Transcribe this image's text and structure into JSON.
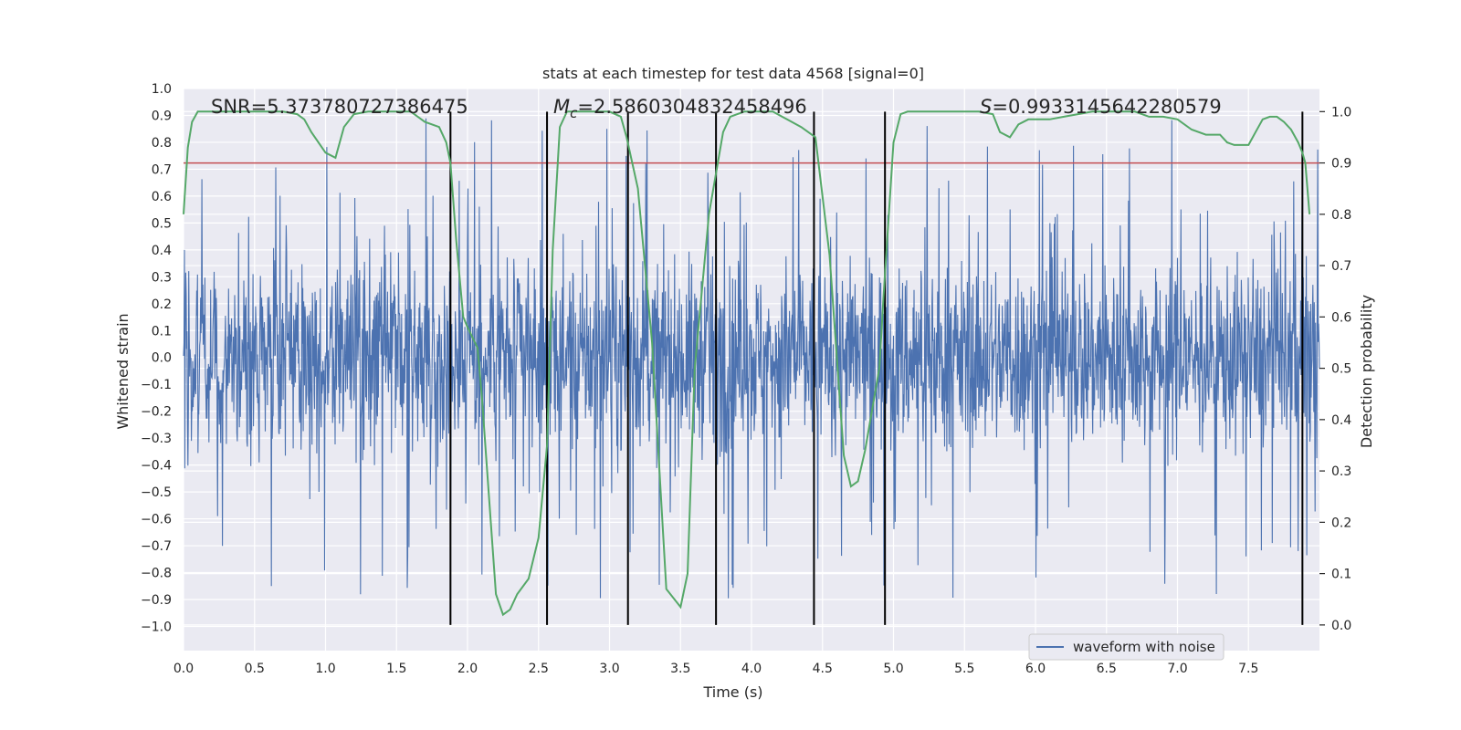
{
  "chart_data": {
    "type": "line",
    "title": "stats at each timestep for test data 4568 [signal=0]",
    "xlabel": "Time (s)",
    "ylabel_left": "Whitened strain",
    "ylabel_right": "Detection probability",
    "xlim": [
      0.0,
      8.0
    ],
    "ylim_left": [
      -1.09,
      1.0
    ],
    "ylim_right": [
      -0.05,
      1.045
    ],
    "x_ticks": [
      "0.0",
      "0.5",
      "1.0",
      "1.5",
      "2.0",
      "2.5",
      "3.0",
      "3.5",
      "4.0",
      "4.5",
      "5.0",
      "5.5",
      "6.0",
      "6.5",
      "7.0",
      "7.5"
    ],
    "y_ticks_left": [
      "1.0",
      "0.9",
      "0.8",
      "0.7",
      "0.6",
      "0.5",
      "0.4",
      "0.3",
      "0.2",
      "0.1",
      "0.0",
      "−0.1",
      "−0.2",
      "−0.3",
      "−0.4",
      "−0.5",
      "−0.6",
      "−0.7",
      "−0.8",
      "−0.9",
      "−1.0"
    ],
    "y_ticks_right": [
      "1.0",
      "0.9",
      "0.8",
      "0.7",
      "0.6",
      "0.5",
      "0.4",
      "0.3",
      "0.2",
      "0.1",
      "0.0"
    ],
    "annotations": {
      "snr": "SNR=5.373780727386475",
      "mc_symbol": "M",
      "mc_sub": "c",
      "mc_value": "=2.5860304832458496",
      "s_symbol": "S",
      "s_value": "=0.9933145642280579"
    },
    "series": [
      {
        "name": "waveform with noise",
        "axis": "left",
        "color": "#4c72b0",
        "description": "whitened strain noise, roughly symmetric about 0 with envelope about ±0.35 and spikes up to ±1.0"
      },
      {
        "name": "detection probability",
        "axis": "right",
        "color": "#55a868",
        "x": [
          0.0,
          0.03,
          0.06,
          0.1,
          0.15,
          0.2,
          0.3,
          0.4,
          0.5,
          0.6,
          0.7,
          0.8,
          0.85,
          0.9,
          1.0,
          1.07,
          1.13,
          1.2,
          1.3,
          1.4,
          1.5,
          1.6,
          1.7,
          1.8,
          1.85,
          1.88,
          1.92,
          1.97,
          2.0,
          2.07,
          2.1,
          2.2,
          2.25,
          2.3,
          2.35,
          2.43,
          2.5,
          2.56,
          2.6,
          2.65,
          2.7,
          2.8,
          2.9,
          3.0,
          3.08,
          3.12,
          3.2,
          3.3,
          3.4,
          3.5,
          3.55,
          3.6,
          3.7,
          3.8,
          3.85,
          3.95,
          4.05,
          4.15,
          4.25,
          4.35,
          4.45,
          4.55,
          4.65,
          4.7,
          4.75,
          4.8,
          4.9,
          4.93,
          5.0,
          5.05,
          5.1,
          5.2,
          5.3,
          5.4,
          5.5,
          5.6,
          5.7,
          5.75,
          5.82,
          5.88,
          5.95,
          6.0,
          6.1,
          6.2,
          6.3,
          6.4,
          6.5,
          6.6,
          6.7,
          6.8,
          6.9,
          7.0,
          7.1,
          7.2,
          7.3,
          7.35,
          7.4,
          7.5,
          7.55,
          7.6,
          7.65,
          7.7,
          7.75,
          7.8,
          7.85,
          7.88,
          7.9,
          7.93
        ],
        "values": [
          0.8,
          0.93,
          0.98,
          1.0,
          1.0,
          1.0,
          1.0,
          1.0,
          1.0,
          1.0,
          1.0,
          0.995,
          0.985,
          0.96,
          0.92,
          0.91,
          0.97,
          0.995,
          1.0,
          1.0,
          1.0,
          1.0,
          0.98,
          0.97,
          0.94,
          0.9,
          0.75,
          0.6,
          0.58,
          0.54,
          0.45,
          0.06,
          0.02,
          0.03,
          0.06,
          0.09,
          0.17,
          0.35,
          0.73,
          0.97,
          1.0,
          1.0,
          1.0,
          1.0,
          0.99,
          0.95,
          0.85,
          0.55,
          0.07,
          0.035,
          0.1,
          0.5,
          0.8,
          0.96,
          0.99,
          1.0,
          1.0,
          1.0,
          0.985,
          0.97,
          0.95,
          0.72,
          0.33,
          0.27,
          0.28,
          0.34,
          0.5,
          0.64,
          0.94,
          0.995,
          1.0,
          1.0,
          1.0,
          1.0,
          1.0,
          1.0,
          0.995,
          0.96,
          0.95,
          0.975,
          0.985,
          0.985,
          0.985,
          0.99,
          0.995,
          1.0,
          1.0,
          1.0,
          1.0,
          0.99,
          0.99,
          0.985,
          0.965,
          0.955,
          0.955,
          0.94,
          0.935,
          0.935,
          0.96,
          0.985,
          0.99,
          0.99,
          0.98,
          0.965,
          0.94,
          0.92,
          0.9,
          0.8
        ]
      },
      {
        "name": "threshold",
        "axis": "right",
        "color": "#c44e52",
        "values": [
          0.9
        ]
      }
    ],
    "vertical_lines": [
      1.88,
      2.56,
      3.13,
      3.75,
      4.44,
      4.94,
      7.88
    ],
    "legend": [
      {
        "label": "waveform with noise",
        "color": "#4c72b0"
      }
    ],
    "legend_position": "lower-right",
    "grid": true
  }
}
